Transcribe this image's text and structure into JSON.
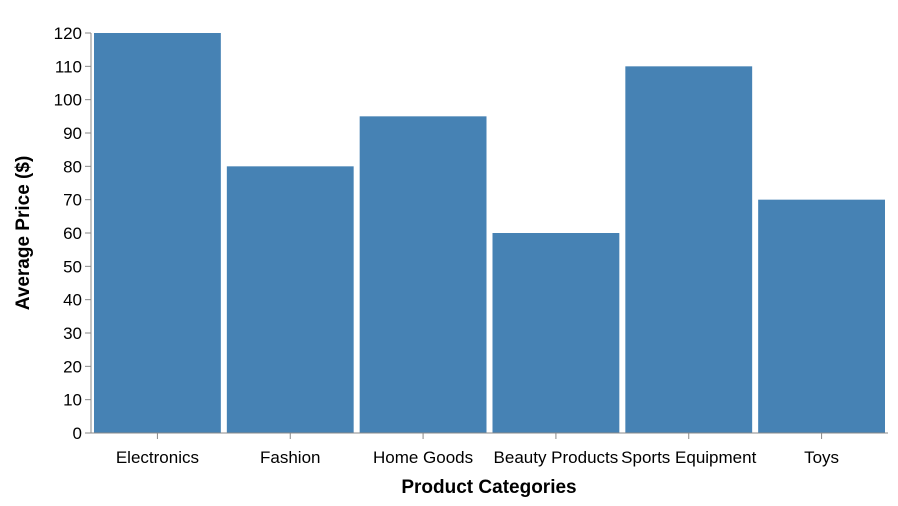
{
  "chart_data": {
    "type": "bar",
    "title": "",
    "xlabel": "Product Categories",
    "ylabel": "Average Price ($)",
    "categories": [
      "Electronics",
      "Fashion",
      "Home Goods",
      "Beauty Products",
      "Sports Equipment",
      "Toys"
    ],
    "values": [
      120,
      80,
      95,
      60,
      110,
      70
    ],
    "ylim": [
      0,
      120
    ],
    "yticks": [
      0,
      10,
      20,
      30,
      40,
      50,
      60,
      70,
      80,
      90,
      100,
      110,
      120
    ],
    "grid": false,
    "legend": "none",
    "bar_color": "#4682b4",
    "axis_color": "#888888"
  }
}
